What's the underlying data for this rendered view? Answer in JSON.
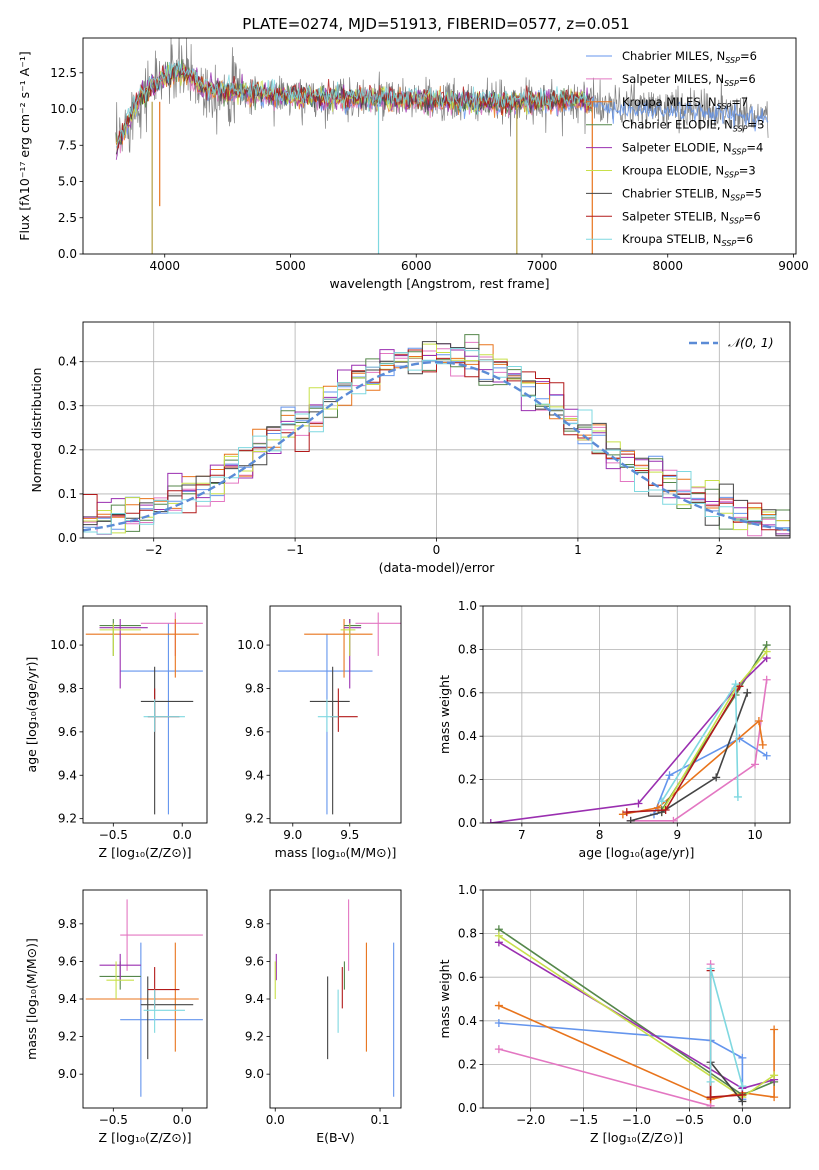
{
  "figure": {
    "title": "PLATE=0274, MJD=51913, FIBERID=0577, z=0.051"
  },
  "series": [
    {
      "base": "Chabrier MILES",
      "nssp": "6",
      "color": "#6495ed"
    },
    {
      "base": "Salpeter MILES",
      "nssp": "6",
      "color": "#e377c2"
    },
    {
      "base": "Kroupa MILES",
      "nssp": "7",
      "color": "#e8741c"
    },
    {
      "base": "Chabrier ELODIE",
      "nssp": "3",
      "color": "#55874b"
    },
    {
      "base": "Salpeter ELODIE",
      "nssp": "4",
      "color": "#9a2fb0"
    },
    {
      "base": "Kroupa ELODIE",
      "nssp": "3",
      "color": "#c8e04a"
    },
    {
      "base": "Chabrier STELIB",
      "nssp": "5",
      "color": "#444444"
    },
    {
      "base": "Salpeter STELIB",
      "nssp": "6",
      "color": "#b21a1a"
    },
    {
      "base": "Kroupa STELIB",
      "nssp": "6",
      "color": "#7fd8e0"
    }
  ],
  "chart_data": [
    {
      "id": "spectrum",
      "type": "line",
      "xlabel": "wavelength [Angstrom, rest frame]",
      "ylabel": "Flux [fλ10⁻¹⁷ erg cm⁻² s⁻¹ A⁻¹]",
      "xlim": [
        3350,
        9020
      ],
      "ylim": [
        0,
        14.9
      ],
      "xticks": [
        4000,
        5000,
        6000,
        7000,
        8000,
        9000
      ],
      "yticks": [
        0.0,
        2.5,
        5.0,
        7.5,
        10.0,
        12.5
      ],
      "legend": "top-right",
      "data_profile": {
        "x": [
          3610,
          3700,
          3800,
          3900,
          4000,
          4100,
          4200,
          4300,
          4400,
          4600,
          4800,
          5000,
          5300,
          5600,
          6000,
          6500,
          7000,
          7300,
          7500,
          8000,
          8400,
          8800
        ],
        "y": [
          7.2,
          9.0,
          10.8,
          11.5,
          12.3,
          12.6,
          12.4,
          11.5,
          11.3,
          11.2,
          11.0,
          10.9,
          10.8,
          10.7,
          10.6,
          10.4,
          10.5,
          10.6,
          10.2,
          10.1,
          9.9,
          9.6
        ]
      },
      "data_model_range": [
        3600,
        7400
      ],
      "absorption_dips": [
        [
          3900,
          0
        ],
        [
          3960,
          3.3
        ],
        [
          5700,
          0
        ],
        [
          6800,
          0
        ],
        [
          7400,
          0
        ]
      ]
    },
    {
      "id": "residual_histogram",
      "type": "line",
      "xlabel": "(data-model)/error",
      "ylabel": "Normed distribution",
      "xlim": [
        -2.5,
        2.5
      ],
      "ylim": [
        0,
        0.49
      ],
      "xticks": [
        -2,
        -1,
        0,
        1,
        2
      ],
      "yticks": [
        0.0,
        0.1,
        0.2,
        0.3,
        0.4
      ],
      "legend": "top-right",
      "reference_curve": {
        "label": "𝒩(0, 1)",
        "mean": 0,
        "std": 1
      },
      "histogram": {
        "bin_width": 0.1,
        "approx_heights": "normal pdf ± 0.04"
      }
    },
    {
      "id": "age_vs_Z",
      "type": "scatter",
      "xlabel": "Z [log₁₀(Z/Z⊙)]",
      "ylabel": "age  [log₁₀(age/yr)]",
      "xlim": [
        -0.72,
        0.18
      ],
      "ylim": [
        9.18,
        10.18
      ],
      "xticks": [
        -0.5,
        0.0
      ],
      "yticks": [
        9.2,
        9.4,
        9.6,
        9.8,
        10.0
      ],
      "points": [
        {
          "series": 0,
          "x": -0.1,
          "xlo": -0.45,
          "xhi": 0.15,
          "y": 9.88,
          "ylo": 9.22,
          "yhi": 10.1
        },
        {
          "series": 1,
          "x": -0.05,
          "xlo": -0.3,
          "xhi": 0.15,
          "y": 10.1,
          "ylo": 9.95,
          "yhi": 10.15
        },
        {
          "series": 2,
          "x": -0.05,
          "xlo": -0.7,
          "xhi": 0.12,
          "y": 10.05,
          "ylo": 9.85,
          "yhi": 10.12
        },
        {
          "series": 3,
          "x": -0.5,
          "xlo": -0.6,
          "xhi": -0.3,
          "y": 10.09,
          "ylo": 9.95,
          "yhi": 10.12
        },
        {
          "series": 4,
          "x": -0.45,
          "xlo": -0.6,
          "xhi": -0.25,
          "y": 10.08,
          "ylo": 9.8,
          "yhi": 10.12
        },
        {
          "series": 5,
          "x": -0.5,
          "xlo": -0.6,
          "xhi": -0.3,
          "y": 10.07,
          "ylo": 9.95,
          "yhi": 10.1
        },
        {
          "series": 6,
          "x": -0.2,
          "xlo": -0.3,
          "xhi": 0.08,
          "y": 9.74,
          "ylo": 9.22,
          "yhi": 9.9
        },
        {
          "series": 7,
          "x": -0.2,
          "xlo": -0.25,
          "xhi": -0.02,
          "y": 9.67,
          "ylo": 9.6,
          "yhi": 9.8
        },
        {
          "series": 8,
          "x": -0.2,
          "xlo": -0.28,
          "xhi": 0.02,
          "y": 9.67,
          "ylo": 9.6,
          "yhi": 9.75
        }
      ]
    },
    {
      "id": "age_vs_mass",
      "type": "scatter",
      "xlabel": "mass [log₁₀(M/M⊙)]",
      "ylabel": "",
      "xlim": [
        8.8,
        9.95
      ],
      "ylim": [
        9.18,
        10.18
      ],
      "xticks": [
        9.0,
        9.5
      ],
      "yticks": [
        9.2,
        9.4,
        9.6,
        9.8,
        10.0
      ],
      "points": [
        {
          "series": 0,
          "x": 9.3,
          "xlo": 8.87,
          "xhi": 9.7,
          "y": 9.88,
          "ylo": 9.22,
          "yhi": 10.05
        },
        {
          "series": 1,
          "x": 9.75,
          "xlo": 9.55,
          "xhi": 9.95,
          "y": 10.1,
          "ylo": 9.95,
          "yhi": 10.15
        },
        {
          "series": 2,
          "x": 9.45,
          "xlo": 9.1,
          "xhi": 9.7,
          "y": 10.05,
          "ylo": 9.85,
          "yhi": 10.12
        },
        {
          "series": 3,
          "x": 9.5,
          "xlo": 9.45,
          "xhi": 9.6,
          "y": 10.09,
          "ylo": 9.95,
          "yhi": 10.12
        },
        {
          "series": 4,
          "x": 9.5,
          "xlo": 9.45,
          "xhi": 9.6,
          "y": 10.08,
          "ylo": 9.8,
          "yhi": 10.12
        },
        {
          "series": 5,
          "x": 9.5,
          "xlo": 9.42,
          "xhi": 9.55,
          "y": 10.07,
          "ylo": 9.95,
          "yhi": 10.1
        },
        {
          "series": 6,
          "x": 9.35,
          "xlo": 9.15,
          "xhi": 9.5,
          "y": 9.74,
          "ylo": 9.22,
          "yhi": 9.9
        },
        {
          "series": 7,
          "x": 9.4,
          "xlo": 9.33,
          "xhi": 9.57,
          "y": 9.67,
          "ylo": 9.6,
          "yhi": 9.8
        },
        {
          "series": 8,
          "x": 9.3,
          "xlo": 9.22,
          "xhi": 9.4,
          "y": 9.67,
          "ylo": 9.6,
          "yhi": 9.75
        }
      ]
    },
    {
      "id": "mass_weight_vs_age",
      "type": "line",
      "xlabel": "age  [log₁₀(age/yr)]",
      "ylabel": "mass weight",
      "xlim": [
        6.5,
        10.45
      ],
      "ylim": [
        0,
        1
      ],
      "xticks": [
        7,
        8,
        9,
        10
      ],
      "yticks": [
        0.0,
        0.2,
        0.4,
        0.6,
        0.8,
        1.0
      ],
      "series_points": [
        {
          "series": 0,
          "x": [
            8.7,
            8.9,
            9.8,
            10.15
          ],
          "y": [
            0.04,
            0.22,
            0.39,
            0.31
          ]
        },
        {
          "series": 1,
          "x": [
            8.4,
            8.95,
            10.0,
            10.15
          ],
          "y": [
            0.01,
            0.01,
            0.27,
            0.66
          ]
        },
        {
          "series": 2,
          "x": [
            8.3,
            8.75,
            10.05,
            10.1
          ],
          "y": [
            0.04,
            0.07,
            0.47,
            0.36
          ]
        },
        {
          "series": 3,
          "x": [
            8.8,
            9.75,
            10.15
          ],
          "y": [
            0.06,
            0.59,
            0.82
          ]
        },
        {
          "series": 4,
          "x": [
            6.6,
            8.5,
            9.75,
            10.15
          ],
          "y": [
            0.0,
            0.09,
            0.62,
            0.76
          ]
        },
        {
          "series": 5,
          "x": [
            8.8,
            9.75,
            10.15
          ],
          "y": [
            0.05,
            0.62,
            0.79
          ]
        },
        {
          "series": 6,
          "x": [
            8.4,
            8.8,
            9.5,
            9.9
          ],
          "y": [
            0.01,
            0.05,
            0.21,
            0.6
          ]
        },
        {
          "series": 7,
          "x": [
            8.35,
            8.85,
            9.8
          ],
          "y": [
            0.05,
            0.06,
            0.63
          ]
        },
        {
          "series": 8,
          "x": [
            8.8,
            9.75,
            9.78
          ],
          "y": [
            0.1,
            0.64,
            0.12
          ]
        }
      ]
    },
    {
      "id": "mass_vs_Z",
      "type": "scatter",
      "xlabel": "Z [log₁₀(Z/Z⊙)]",
      "ylabel": "mass [log₁₀(M/M⊙)]",
      "xlim": [
        -0.72,
        0.18
      ],
      "ylim": [
        8.82,
        9.98
      ],
      "xticks": [
        -0.5,
        0.0
      ],
      "yticks": [
        9.0,
        9.2,
        9.4,
        9.6,
        9.8
      ],
      "points": [
        {
          "series": 0,
          "x": -0.3,
          "xlo": -0.45,
          "xhi": 0.15,
          "y": 9.29,
          "ylo": 8.88,
          "yhi": 9.7
        },
        {
          "series": 1,
          "x": -0.4,
          "xlo": -0.45,
          "xhi": 0.15,
          "y": 9.74,
          "ylo": 9.55,
          "yhi": 9.93
        },
        {
          "series": 2,
          "x": -0.05,
          "xlo": -0.7,
          "xhi": 0.12,
          "y": 9.4,
          "ylo": 9.12,
          "yhi": 9.7
        },
        {
          "series": 3,
          "x": -0.45,
          "xlo": -0.6,
          "xhi": -0.3,
          "y": 9.52,
          "ylo": 9.45,
          "yhi": 9.6
        },
        {
          "series": 4,
          "x": -0.45,
          "xlo": -0.6,
          "xhi": -0.3,
          "y": 9.58,
          "ylo": 9.5,
          "yhi": 9.64
        },
        {
          "series": 5,
          "x": -0.48,
          "xlo": -0.55,
          "xhi": -0.35,
          "y": 9.5,
          "ylo": 9.4,
          "yhi": 9.6
        },
        {
          "series": 6,
          "x": -0.25,
          "xlo": -0.3,
          "xhi": 0.08,
          "y": 9.37,
          "ylo": 9.08,
          "yhi": 9.52
        },
        {
          "series": 7,
          "x": -0.2,
          "xlo": -0.25,
          "xhi": -0.02,
          "y": 9.45,
          "ylo": 9.35,
          "yhi": 9.57
        },
        {
          "series": 8,
          "x": -0.2,
          "xlo": -0.28,
          "xhi": 0.02,
          "y": 9.34,
          "ylo": 9.22,
          "yhi": 9.45
        }
      ]
    },
    {
      "id": "mass_vs_ebv",
      "type": "scatter",
      "xlabel": "E(B-V)",
      "ylabel": "",
      "xlim": [
        -0.005,
        0.12
      ],
      "ylim": [
        8.82,
        9.98
      ],
      "xticks": [
        0.0,
        0.1
      ],
      "yticks": [
        9.0,
        9.2,
        9.4,
        9.6,
        9.8
      ],
      "points": [
        {
          "series": 0,
          "x": 0.113,
          "y": 9.29,
          "ylo": 8.88,
          "yhi": 9.7
        },
        {
          "series": 1,
          "x": 0.07,
          "y": 9.74,
          "ylo": 9.55,
          "yhi": 9.93
        },
        {
          "series": 2,
          "x": 0.087,
          "y": 9.4,
          "ylo": 9.12,
          "yhi": 9.7
        },
        {
          "series": 3,
          "x": 0.066,
          "y": 9.52,
          "ylo": 9.45,
          "yhi": 9.6
        },
        {
          "series": 4,
          "x": 0.001,
          "y": 9.58,
          "ylo": 9.5,
          "yhi": 9.64
        },
        {
          "series": 5,
          "x": 0.0,
          "y": 9.5,
          "ylo": 9.4,
          "yhi": 9.6
        },
        {
          "series": 6,
          "x": 0.05,
          "y": 9.37,
          "ylo": 9.08,
          "yhi": 9.52
        },
        {
          "series": 7,
          "x": 0.064,
          "y": 9.45,
          "ylo": 9.35,
          "yhi": 9.57
        },
        {
          "series": 8,
          "x": 0.06,
          "y": 9.34,
          "ylo": 9.22,
          "yhi": 9.45
        }
      ]
    },
    {
      "id": "mass_weight_vs_Z",
      "type": "line",
      "xlabel": "Z [log₁₀(Z/Z⊙)]",
      "ylabel": "mass weight",
      "xlim": [
        -2.45,
        0.45
      ],
      "ylim": [
        0,
        1
      ],
      "xticks": [
        -2.0,
        -1.5,
        -1.0,
        -0.5,
        0.0
      ],
      "yticks": [
        0.0,
        0.2,
        0.4,
        0.6,
        0.8,
        1.0
      ],
      "series_points": [
        {
          "series": 0,
          "x": [
            -2.3,
            -0.3,
            0.0,
            0.0
          ],
          "y": [
            0.39,
            0.31,
            0.23,
            0.04
          ]
        },
        {
          "series": 1,
          "x": [
            -2.3,
            -0.3,
            -0.3
          ],
          "y": [
            0.27,
            0.01,
            0.66
          ]
        },
        {
          "series": 2,
          "x": [
            -2.3,
            -0.3,
            0.0,
            0.3,
            0.3
          ],
          "y": [
            0.47,
            0.04,
            0.07,
            0.05,
            0.36
          ]
        },
        {
          "series": 3,
          "x": [
            -2.3,
            0.0,
            0.3
          ],
          "y": [
            0.82,
            0.06,
            0.12
          ]
        },
        {
          "series": 4,
          "x": [
            -2.3,
            0.0,
            0.3
          ],
          "y": [
            0.76,
            0.09,
            0.13
          ]
        },
        {
          "series": 5,
          "x": [
            -2.3,
            0.0,
            0.3
          ],
          "y": [
            0.79,
            0.05,
            0.15
          ]
        },
        {
          "series": 6,
          "x": [
            -0.3,
            -0.3,
            0.0
          ],
          "y": [
            0.05,
            0.21,
            0.03
          ]
        },
        {
          "series": 7,
          "x": [
            -0.3,
            -0.3,
            0.0
          ],
          "y": [
            0.63,
            0.05,
            0.06
          ]
        },
        {
          "series": 8,
          "x": [
            -0.3,
            -0.3,
            0.0
          ],
          "y": [
            0.12,
            0.64,
            0.1
          ]
        }
      ]
    }
  ]
}
